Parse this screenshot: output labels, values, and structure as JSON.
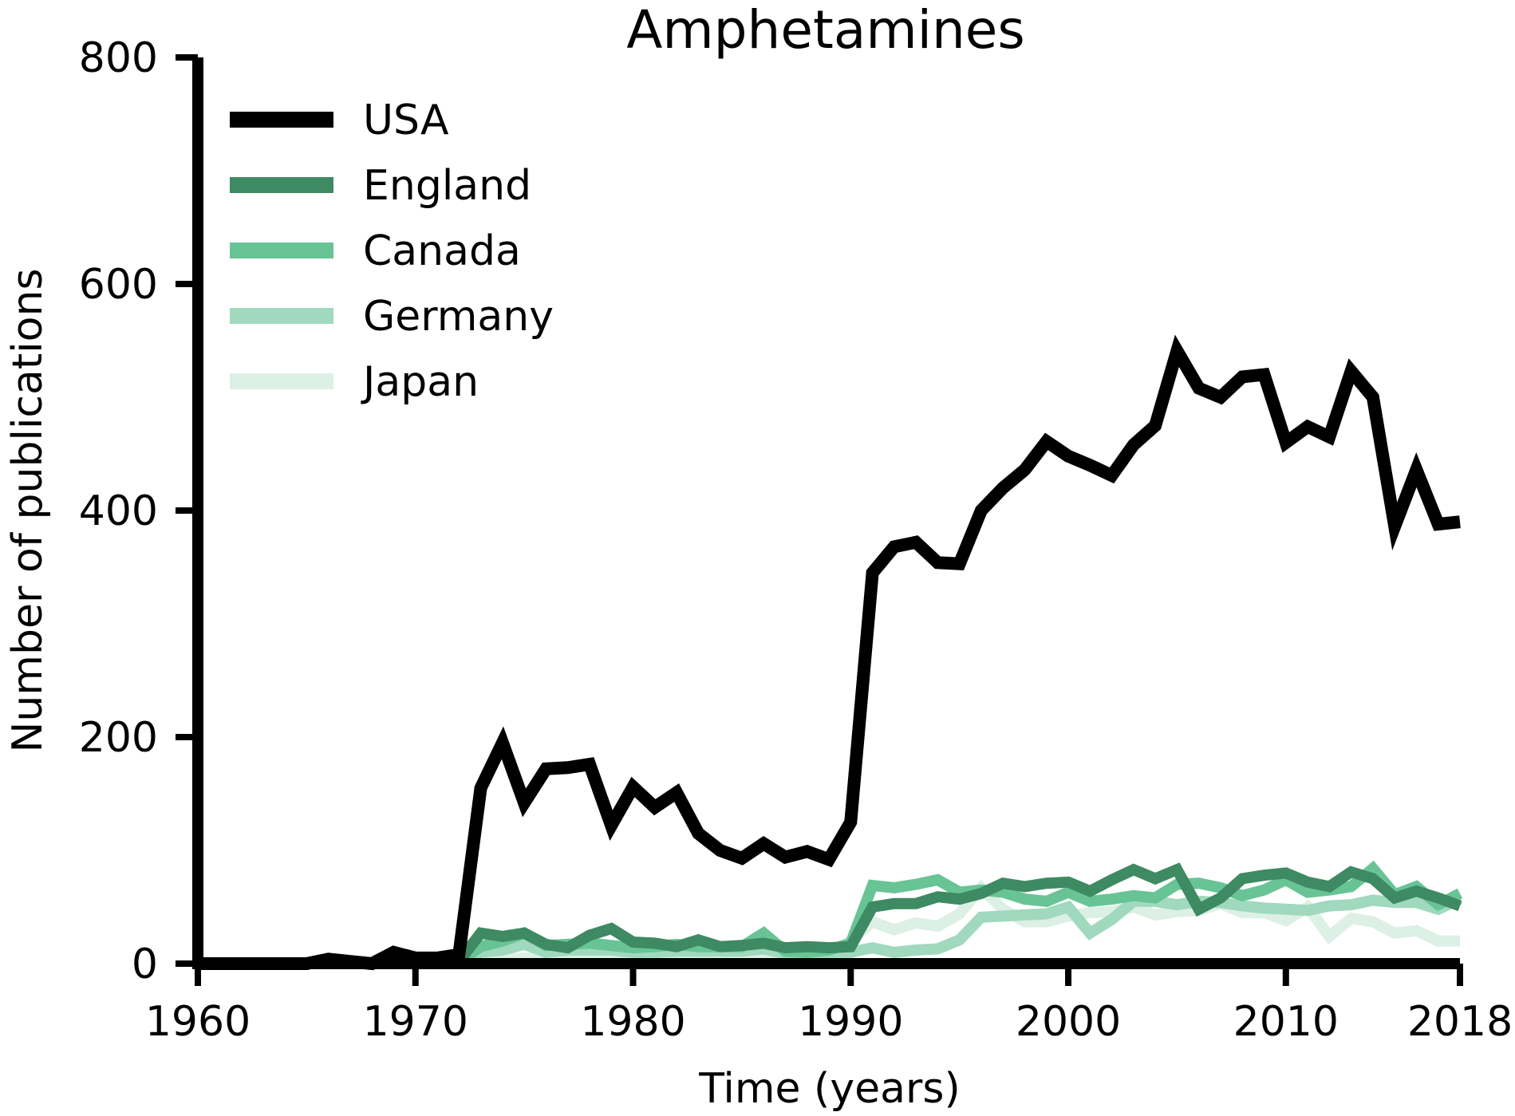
{
  "chart_data": {
    "type": "line",
    "title": "Amphetamines",
    "xlabel": "Time (years)",
    "ylabel": "Number of publications",
    "xlim": [
      1960,
      2018
    ],
    "ylim": [
      0,
      800
    ],
    "xticks": [
      "1960",
      "1970",
      "1980",
      "1990",
      "2000",
      "2010",
      "2018"
    ],
    "yticks": [
      "0",
      "200",
      "400",
      "600",
      "800"
    ],
    "grid": false,
    "legend_position": "top-left",
    "x": [
      1960,
      1961,
      1962,
      1963,
      1964,
      1965,
      1966,
      1967,
      1968,
      1969,
      1970,
      1971,
      1972,
      1973,
      1974,
      1975,
      1976,
      1977,
      1978,
      1979,
      1980,
      1981,
      1982,
      1983,
      1984,
      1985,
      1986,
      1987,
      1988,
      1989,
      1990,
      1991,
      1992,
      1993,
      1994,
      1995,
      1996,
      1997,
      1998,
      1999,
      2000,
      2001,
      2002,
      2003,
      2004,
      2005,
      2006,
      2007,
      2008,
      2009,
      2010,
      2011,
      2012,
      2013,
      2014,
      2015,
      2016,
      2017,
      2018
    ],
    "series": [
      {
        "name": "USA",
        "color": "#000000",
        "values": [
          0,
          0,
          0,
          0,
          0,
          0,
          4,
          2,
          0,
          10,
          5,
          5,
          8,
          155,
          195,
          142,
          172,
          173,
          176,
          122,
          156,
          138,
          151,
          115,
          100,
          93,
          106,
          94,
          99,
          92,
          125,
          345,
          368,
          372,
          354,
          353,
          400,
          420,
          436,
          461,
          448,
          440,
          431,
          458,
          475,
          541,
          508,
          500,
          518,
          520,
          460,
          474,
          465,
          523,
          500,
          386,
          436,
          388,
          390
        ]
      },
      {
        "name": "England",
        "color": "#3e8a62",
        "values": [
          0,
          0,
          0,
          0,
          0,
          0,
          0,
          0,
          0,
          0,
          0,
          0,
          2,
          27,
          24,
          27,
          17,
          14,
          25,
          31,
          19,
          18,
          15,
          21,
          15,
          16,
          18,
          14,
          15,
          14,
          15,
          50,
          53,
          53,
          59,
          57,
          62,
          71,
          68,
          71,
          72,
          64,
          74,
          83,
          75,
          83,
          48,
          58,
          75,
          78,
          80,
          72,
          68,
          81,
          75,
          58,
          64,
          58,
          51
        ]
      },
      {
        "name": "Canada",
        "color": "#68c495",
        "values": [
          0,
          0,
          0,
          0,
          0,
          0,
          0,
          0,
          0,
          0,
          0,
          0,
          2,
          15,
          20,
          27,
          16,
          17,
          18,
          16,
          14,
          15,
          17,
          15,
          15,
          15,
          27,
          11,
          10,
          12,
          18,
          69,
          67,
          70,
          74,
          63,
          65,
          63,
          57,
          55,
          63,
          55,
          57,
          60,
          58,
          70,
          71,
          67,
          60,
          65,
          74,
          63,
          65,
          68,
          84,
          61,
          68,
          52,
          62
        ]
      },
      {
        "name": "Germany",
        "color": "#a0d9bd",
        "values": [
          0,
          0,
          0,
          0,
          0,
          0,
          0,
          0,
          0,
          0,
          0,
          0,
          0,
          10,
          12,
          17,
          10,
          12,
          12,
          12,
          10,
          10,
          11,
          11,
          11,
          11,
          13,
          9,
          9,
          10,
          10,
          14,
          10,
          12,
          13,
          21,
          41,
          42,
          43,
          44,
          50,
          27,
          39,
          55,
          55,
          52,
          55,
          54,
          51,
          49,
          48,
          47,
          51,
          52,
          56,
          54,
          54,
          48,
          57
        ]
      },
      {
        "name": "Japan",
        "color": "#dcf0e5",
        "values": [
          0,
          0,
          0,
          0,
          0,
          0,
          0,
          0,
          0,
          0,
          0,
          0,
          0,
          3,
          4,
          5,
          4,
          4,
          5,
          4,
          4,
          4,
          4,
          4,
          4,
          3,
          4,
          3,
          3,
          4,
          20,
          37,
          30,
          36,
          33,
          44,
          67,
          48,
          37,
          37,
          42,
          45,
          46,
          50,
          43,
          46,
          47,
          53,
          45,
          45,
          38,
          50,
          24,
          40,
          37,
          27,
          29,
          20,
          20
        ]
      }
    ]
  }
}
